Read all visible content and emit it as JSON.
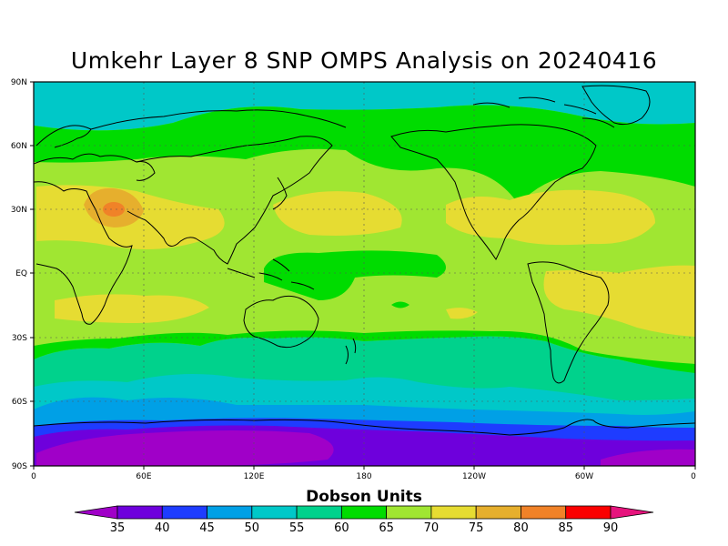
{
  "title": "Umkehr Layer 8 SNP OMPS Analysis on 20240416",
  "lat_labels": [
    "90N",
    "60N",
    "30N",
    "EQ",
    "30S",
    "60S",
    "90S"
  ],
  "lon_labels": [
    "0",
    "60E",
    "120E",
    "180",
    "120W",
    "60W",
    "0"
  ],
  "colorbar": {
    "title": "Dobson Units",
    "levels": [
      "35",
      "40",
      "45",
      "50",
      "55",
      "60",
      "65",
      "70",
      "75",
      "80",
      "85",
      "90"
    ],
    "colors": [
      "#a000c8",
      "#6e00dc",
      "#1e3cff",
      "#00a0e6",
      "#00c8c8",
      "#00d28c",
      "#00dc00",
      "#a0e632",
      "#e6dc32",
      "#e6af2d",
      "#f08228",
      "#fa0000",
      "#e6147d"
    ]
  },
  "chart_data": {
    "type": "heatmap",
    "title": "Umkehr Layer 8 SNP OMPS Analysis on 20240416",
    "units": "Dobson Units",
    "x_range": [
      "0",
      "0"
    ],
    "y_range": [
      "90S",
      "90N"
    ],
    "levels": [
      35,
      40,
      45,
      50,
      55,
      60,
      65,
      70,
      75,
      80,
      85,
      90
    ],
    "grid": true
  }
}
